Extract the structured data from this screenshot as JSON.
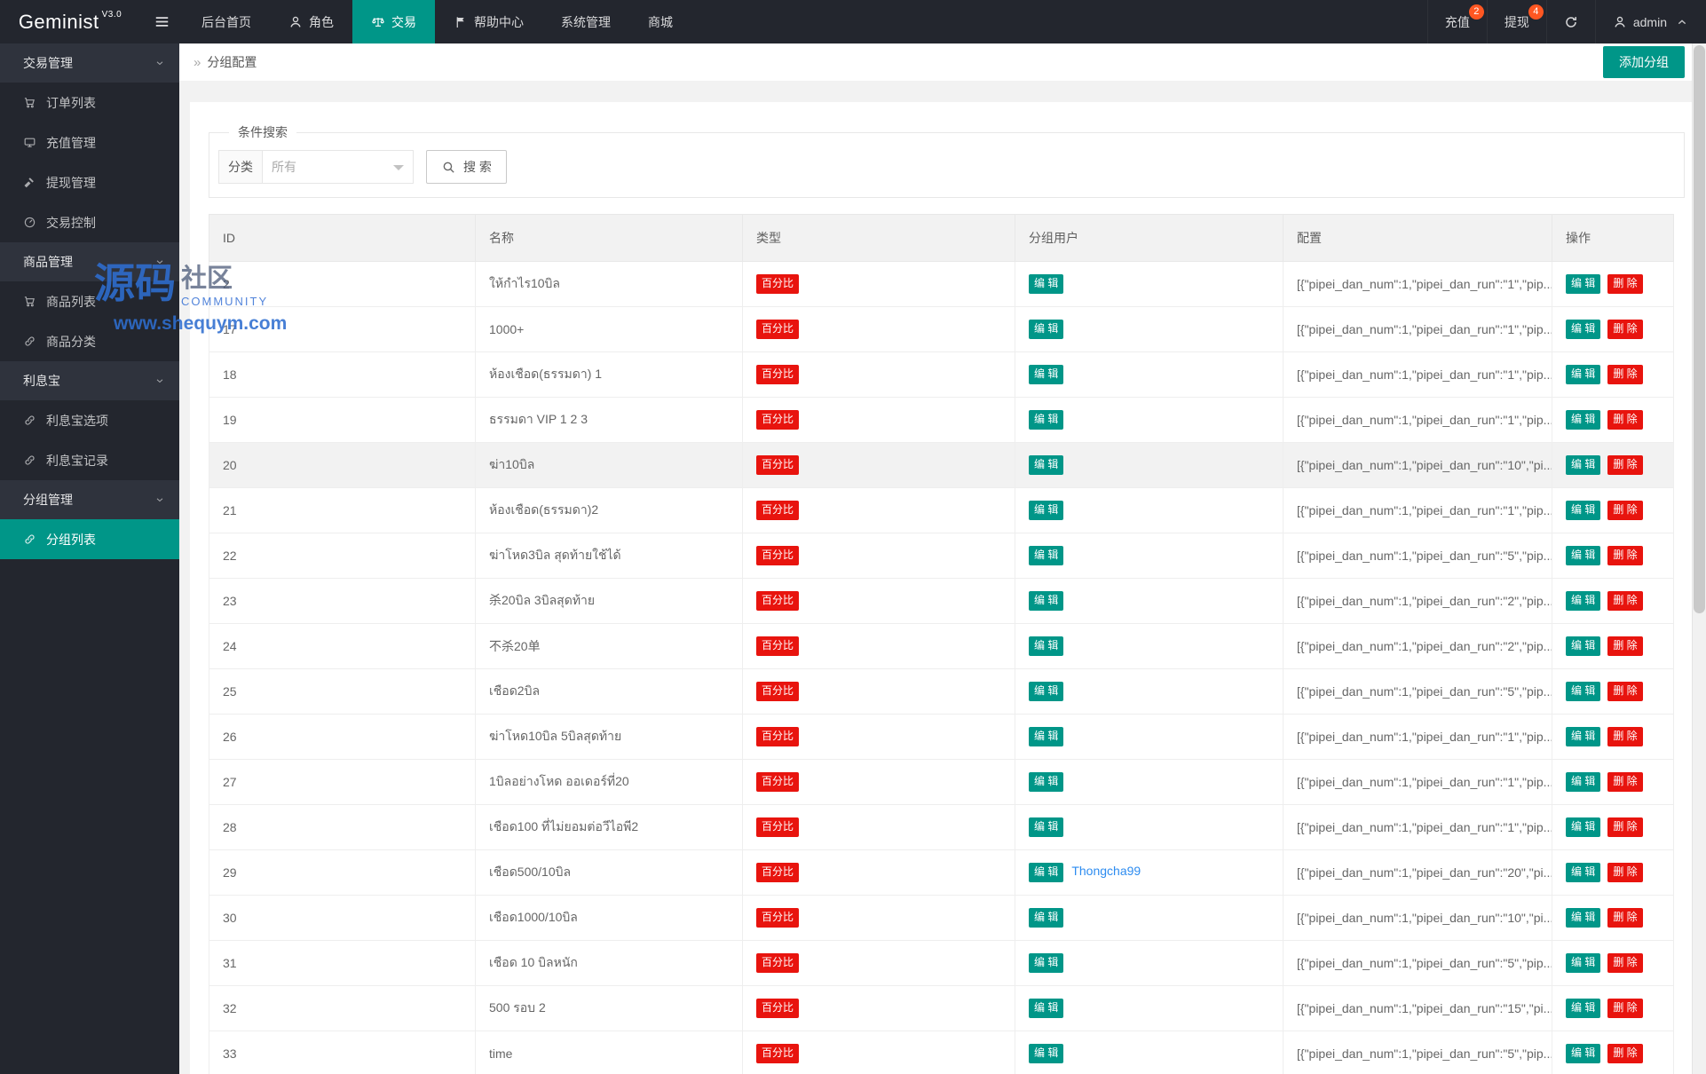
{
  "colors": {
    "accent": "#009688",
    "danger": "#e8140e",
    "notice_badge": "#ff5722",
    "link": "#2d8cf0",
    "dark_bg": "#23262e"
  },
  "navbar": {
    "logo": "Geminist",
    "version": "V3.0",
    "menu": [
      {
        "name": "dashboard",
        "label": "后台首页",
        "icon": null,
        "active": false
      },
      {
        "name": "role",
        "label": "角色",
        "icon": "user",
        "active": false
      },
      {
        "name": "trade",
        "label": "交易",
        "icon": "scales",
        "active": true
      },
      {
        "name": "help-center",
        "label": "帮助中心",
        "icon": "flag",
        "active": false
      },
      {
        "name": "system-mgmt",
        "label": "系统管理",
        "icon": null,
        "active": false
      },
      {
        "name": "mall",
        "label": "商城",
        "icon": null,
        "active": false
      }
    ],
    "right": [
      {
        "name": "recharge",
        "label": "充值",
        "badge": "2"
      },
      {
        "name": "withdraw",
        "label": "提现",
        "badge": "4"
      },
      {
        "name": "refresh",
        "label": "",
        "icon": "refresh"
      },
      {
        "name": "admin",
        "label": "admin",
        "icon": "user",
        "caret": true
      }
    ]
  },
  "sidebar": {
    "sections": [
      {
        "name": "trade-mgmt",
        "label": "交易管理",
        "items": [
          {
            "name": "order-list",
            "label": "订单列表",
            "icon": "cart"
          },
          {
            "name": "recharge-mgmt",
            "label": "充值管理",
            "icon": "board"
          },
          {
            "name": "withdraw-mgmt",
            "label": "提现管理",
            "icon": "gavel"
          },
          {
            "name": "trade-control",
            "label": "交易控制",
            "icon": "gauge"
          }
        ]
      },
      {
        "name": "goods-mgmt",
        "label": "商品管理",
        "items": [
          {
            "name": "goods-list",
            "label": "商品列表",
            "icon": "cart"
          },
          {
            "name": "goods-category",
            "label": "商品分类",
            "icon": "link"
          }
        ]
      },
      {
        "name": "lixibao",
        "label": "利息宝",
        "items": [
          {
            "name": "lixibao-options",
            "label": "利息宝选项",
            "icon": "link"
          },
          {
            "name": "lixibao-records",
            "label": "利息宝记录",
            "icon": "link"
          }
        ]
      },
      {
        "name": "group-mgmt",
        "label": "分组管理",
        "items": [
          {
            "name": "group-list",
            "label": "分组列表",
            "icon": "link",
            "active": true
          }
        ]
      }
    ]
  },
  "page": {
    "breadcrumb_sep": "»",
    "breadcrumb": "分组配置",
    "add_button": "添加分组"
  },
  "search": {
    "legend": "条件搜索",
    "category_label": "分类",
    "category_value": "所有",
    "button": "搜 索"
  },
  "table": {
    "headers": [
      "ID",
      "名称",
      "类型",
      "分组用户",
      "配置",
      "操作"
    ],
    "type_badge": "百分比",
    "group_edit_label": "编 辑",
    "edit_label": "编 辑",
    "delete_label": "删 除",
    "rows": [
      {
        "id": "2",
        "name": "ให้กำไร10บิล",
        "config": "[{\"pipei_dan_num\":1,\"pipei_dan_run\":\"1\",\"pip..."
      },
      {
        "id": "17",
        "name": "1000+",
        "config": "[{\"pipei_dan_num\":1,\"pipei_dan_run\":\"1\",\"pip..."
      },
      {
        "id": "18",
        "name": "ห้องเชือด(ธรรมดา) 1",
        "config": "[{\"pipei_dan_num\":1,\"pipei_dan_run\":\"1\",\"pip..."
      },
      {
        "id": "19",
        "name": "ธรรมดา VIP 1 2 3",
        "config": "[{\"pipei_dan_num\":1,\"pipei_dan_run\":\"1\",\"pip..."
      },
      {
        "id": "20",
        "name": "ฆ่า10บิล",
        "highlighted": true,
        "config": "[{\"pipei_dan_num\":1,\"pipei_dan_run\":\"10\",\"pi..."
      },
      {
        "id": "21",
        "name": "ห้องเชือด(ธรรมดา)2",
        "config": "[{\"pipei_dan_num\":1,\"pipei_dan_run\":\"1\",\"pip..."
      },
      {
        "id": "22",
        "name": "ฆ่าโหด3บิล สุดท้ายใช้ได้",
        "config": "[{\"pipei_dan_num\":1,\"pipei_dan_run\":\"5\",\"pip..."
      },
      {
        "id": "23",
        "name": "杀20บิล 3บิลสุดท้าย",
        "config": "[{\"pipei_dan_num\":1,\"pipei_dan_run\":\"2\",\"pip..."
      },
      {
        "id": "24",
        "name": "不杀20单",
        "config": "[{\"pipei_dan_num\":1,\"pipei_dan_run\":\"2\",\"pip..."
      },
      {
        "id": "25",
        "name": "เชือด2บิล",
        "config": "[{\"pipei_dan_num\":1,\"pipei_dan_run\":\"5\",\"pip..."
      },
      {
        "id": "26",
        "name": "ฆ่าโหด10บิล 5บิลสุดท้าย",
        "config": "[{\"pipei_dan_num\":1,\"pipei_dan_run\":\"1\",\"pip..."
      },
      {
        "id": "27",
        "name": "1บิลอย่างโหด ออเดอร์ที่20",
        "config": "[{\"pipei_dan_num\":1,\"pipei_dan_run\":\"1\",\"pip..."
      },
      {
        "id": "28",
        "name": "เชือด100 ที่ไม่ยอมต่อวีไอพี2",
        "config": "[{\"pipei_dan_num\":1,\"pipei_dan_run\":\"1\",\"pip..."
      },
      {
        "id": "29",
        "name": "เชือด500/10บิล",
        "user": "Thongcha99",
        "config": "[{\"pipei_dan_num\":1,\"pipei_dan_run\":\"20\",\"pi..."
      },
      {
        "id": "30",
        "name": "เชือด1000/10บิล",
        "config": "[{\"pipei_dan_num\":1,\"pipei_dan_run\":\"10\",\"pi..."
      },
      {
        "id": "31",
        "name": "เชือด 10 บิลหนัก",
        "config": "[{\"pipei_dan_num\":1,\"pipei_dan_run\":\"5\",\"pip..."
      },
      {
        "id": "32",
        "name": "500 รอบ 2",
        "config": "[{\"pipei_dan_num\":1,\"pipei_dan_run\":\"15\",\"pi..."
      },
      {
        "id": "33",
        "name": "time",
        "config": "[{\"pipei_dan_num\":1,\"pipei_dan_run\":\"5\",\"pip..."
      }
    ]
  },
  "watermark": {
    "text_cn_1": "源码",
    "text_cn_2": "社区",
    "text_en": "COMMUNITY",
    "url": "www.shequym.com"
  }
}
